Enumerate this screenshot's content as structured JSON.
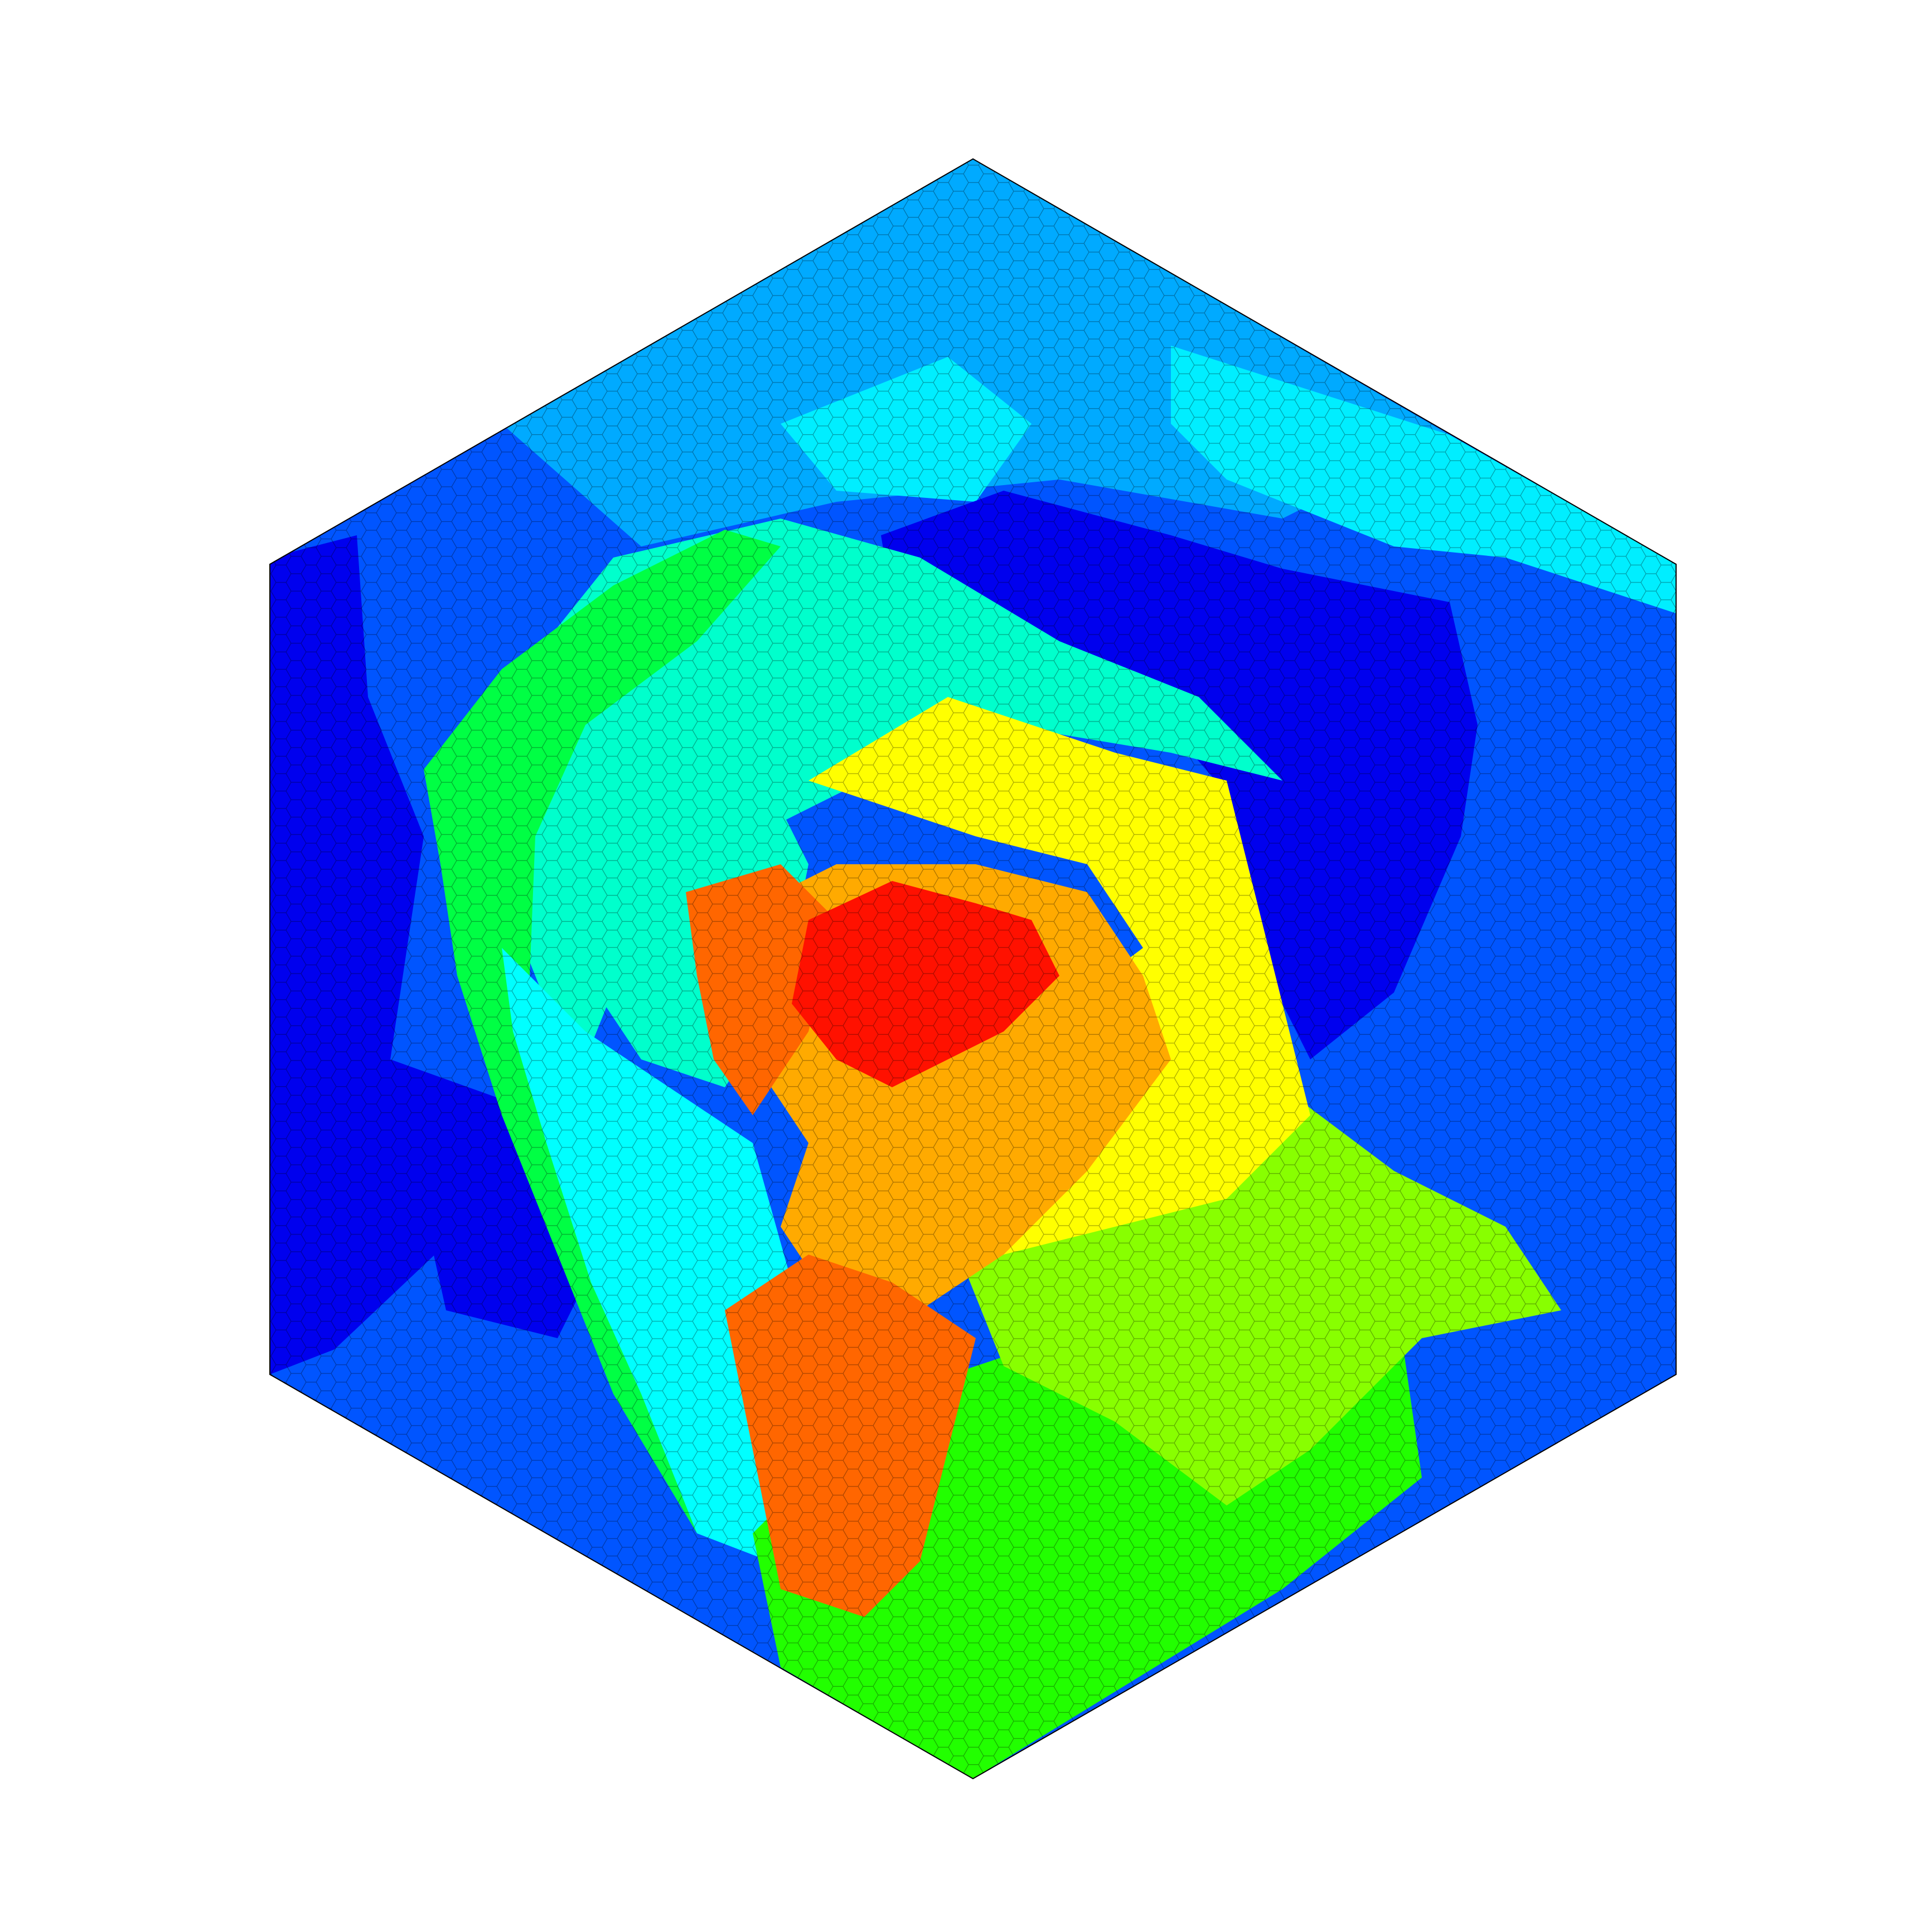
{
  "figure": {
    "kind": "hexagonal-lattice-heatmap",
    "background": "#ffffff",
    "cell_outline": "#000000",
    "colormap": "jet",
    "palette": [
      "#0000ee",
      "#0044ff",
      "#0077ff",
      "#00aaff",
      "#00ddff",
      "#00ffee",
      "#00ffaa",
      "#00ff44",
      "#44ff00",
      "#aaff00",
      "#ffff00",
      "#ffcc00",
      "#ff8800",
      "#ff5500",
      "#ff2200"
    ],
    "regions": [
      {
        "name": "dark-blue-left-band",
        "color": "#0000ee"
      },
      {
        "name": "blue-outer-ring",
        "color": "#0055ff"
      },
      {
        "name": "light-blue-top",
        "color": "#00aaff"
      },
      {
        "name": "cyan-top-right",
        "color": "#00eeff"
      },
      {
        "name": "teal-inner-ring",
        "color": "#00ffcc"
      },
      {
        "name": "green-left-arc",
        "color": "#00ff44"
      },
      {
        "name": "cyan-lower-left",
        "color": "#00ffff"
      },
      {
        "name": "green-bottom",
        "color": "#22ff00"
      },
      {
        "name": "lime-lower-right",
        "color": "#88ff00"
      },
      {
        "name": "yellow-core",
        "color": "#ffff00"
      },
      {
        "name": "orange-core",
        "color": "#ffaa00"
      },
      {
        "name": "dark-orange-tongue",
        "color": "#ff6600"
      },
      {
        "name": "red-center",
        "color": "#ff1100"
      }
    ]
  }
}
